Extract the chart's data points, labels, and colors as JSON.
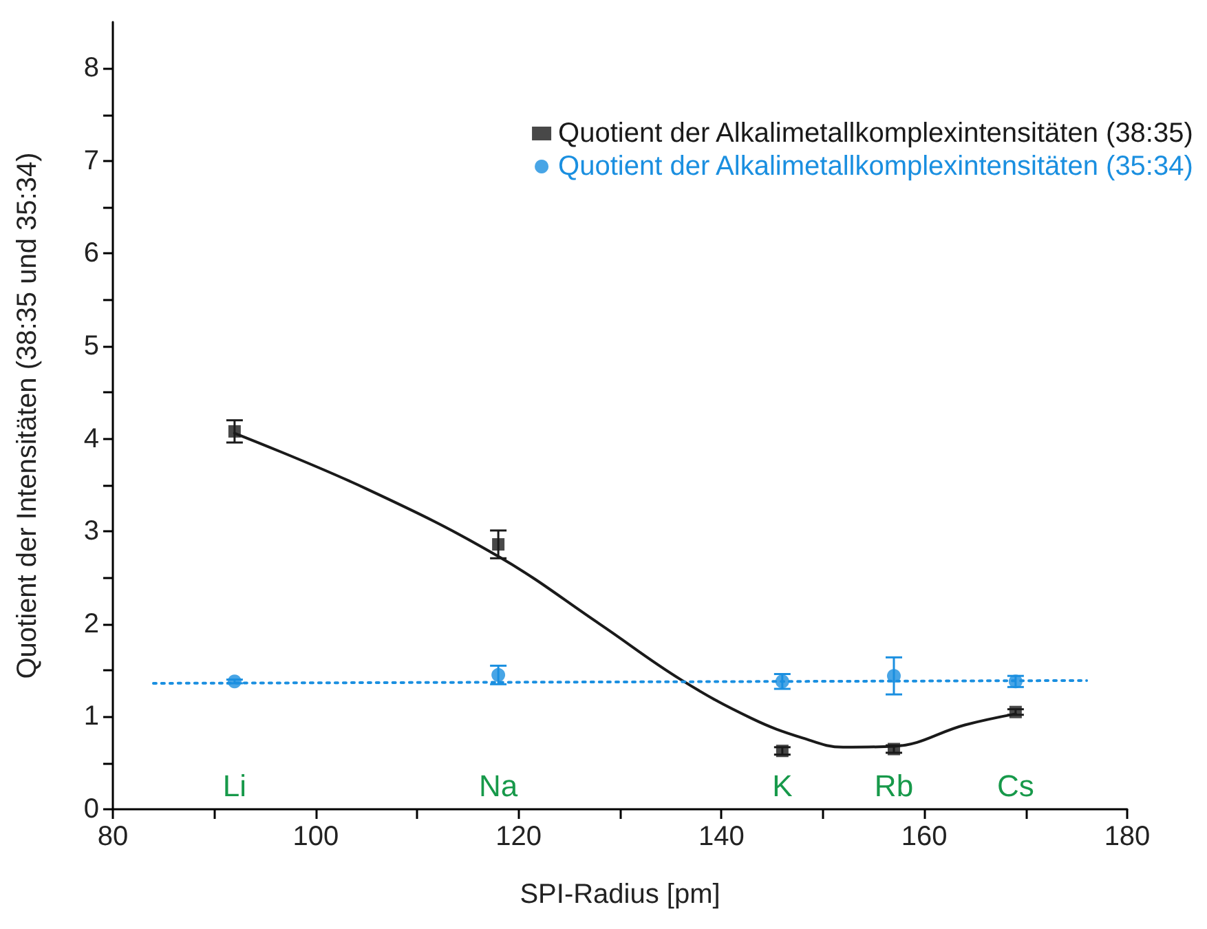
{
  "chart_data": {
    "type": "scatter",
    "xlabel": "SPI-Radius [pm]",
    "ylabel": "Quotient der Intensitäten (38:35 und 35:34)",
    "xlim": [
      80,
      180
    ],
    "xticks": [
      80,
      {
        "value": 90,
        "label": null
      },
      100,
      {
        "value": 110,
        "label": null
      },
      120,
      {
        "value": 130,
        "label": null
      },
      140,
      {
        "value": 150,
        "label": null
      },
      160,
      {
        "value": 170,
        "label": null
      },
      180
    ],
    "ylim": [
      0,
      8.5
    ],
    "yticks": [
      0,
      {
        "value": 0.5,
        "label": null
      },
      1,
      {
        "value": 1.5,
        "label": null
      },
      2,
      {
        "value": 2.5,
        "label": null
      },
      3,
      {
        "value": 3.5,
        "label": null
      },
      4,
      {
        "value": 4.5,
        "label": null
      },
      5,
      {
        "value": 5.5,
        "label": null
      },
      6,
      {
        "value": 6.5,
        "label": null
      },
      7,
      {
        "value": 7.5,
        "label": null
      },
      8
    ],
    "grid": false,
    "legend": "top right",
    "series": [
      {
        "name": "Quotient der Alkalimetallkomplexintensitäten (38:35)",
        "marker": "square",
        "color": "#1a1a1a",
        "x": [
          92,
          118,
          146,
          157,
          169
        ],
        "values": [
          4.08,
          2.86,
          0.63,
          0.65,
          1.05
        ],
        "errors": [
          0.12,
          0.15,
          0.04,
          0.04,
          0.03
        ]
      },
      {
        "type": "line",
        "marker": "none",
        "line_style": "solid",
        "color": "#1a1a1a",
        "x": [
          92,
          105,
          118,
          128,
          136,
          143,
          148,
          152,
          157,
          164,
          169
        ],
        "values": [
          4.06,
          3.46,
          2.73,
          2.0,
          1.4,
          0.98,
          0.77,
          0.67,
          0.68,
          0.91,
          1.03
        ]
      },
      {
        "name": "Quotient der Alkalimetallkomplexintensitäten (35:34)",
        "marker": "circle",
        "color": "#1a8fe0",
        "x": [
          92,
          118,
          146,
          157,
          169
        ],
        "values": [
          1.38,
          1.45,
          1.38,
          1.44,
          1.38
        ],
        "errors": [
          0.02,
          0.1,
          0.08,
          0.2,
          0.06
        ]
      },
      {
        "type": "line",
        "marker": "none",
        "line_style": "dotted",
        "color": "#1a8fe0",
        "x": [
          84,
          176
        ],
        "values": [
          1.36,
          1.39
        ]
      }
    ],
    "annotations": [
      "Li",
      "Na",
      "K",
      "Rb",
      "Cs"
    ]
  }
}
